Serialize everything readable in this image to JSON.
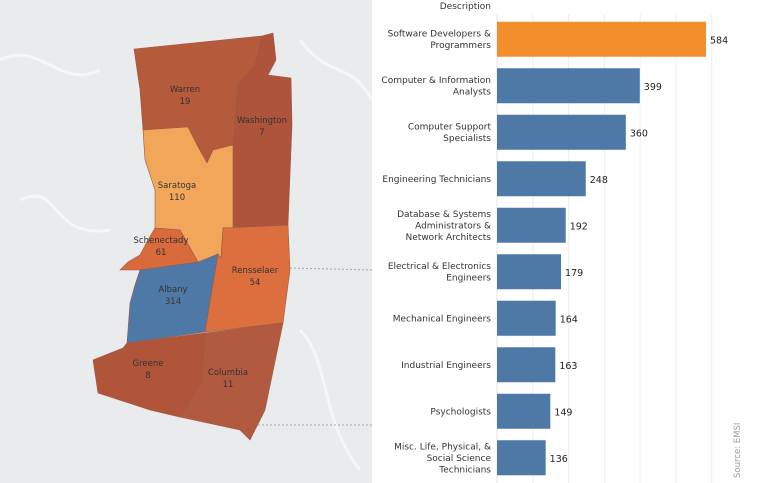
{
  "map": {
    "counties": [
      {
        "name": "Warren",
        "value": "19",
        "color": "#b65a3c"
      },
      {
        "name": "Washington",
        "value": "7",
        "color": "#ad543a"
      },
      {
        "name": "Saratoga",
        "value": "110",
        "color": "#f2a65a"
      },
      {
        "name": "Schenectady",
        "value": "61",
        "color": "#d86a3b"
      },
      {
        "name": "Albany",
        "value": "314",
        "color": "#4e79a7"
      },
      {
        "name": "Rensselaer",
        "value": "54",
        "color": "#dc6f3d"
      },
      {
        "name": "Greene",
        "value": "8",
        "color": "#b0553a"
      },
      {
        "name": "Columbia",
        "value": "11",
        "color": "#b25a40"
      }
    ]
  },
  "chart_data": {
    "type": "bar",
    "orientation": "horizontal",
    "column_header": "Description",
    "categories": [
      [
        "Software Developers &",
        "Programmers"
      ],
      [
        "Computer & Information",
        "Analysts"
      ],
      [
        "Computer Support",
        "Specialists"
      ],
      [
        "Engineering Technicians"
      ],
      [
        "Database & Systems",
        "Administrators &",
        "Network Architects"
      ],
      [
        "Electrical & Electronics",
        "Engineers"
      ],
      [
        "Mechanical Engineers"
      ],
      [
        "Industrial Engineers"
      ],
      [
        "Psychologists"
      ],
      [
        "Misc. Life, Physical, &",
        "Social Science",
        "Technicians"
      ]
    ],
    "values": [
      584,
      399,
      360,
      248,
      192,
      179,
      164,
      163,
      149,
      136
    ],
    "highlight_color": "#f28e2b",
    "bar_color": "#4e79a7",
    "xlim": [
      0,
      600
    ],
    "grid": true,
    "source": "Source: EMSI"
  }
}
